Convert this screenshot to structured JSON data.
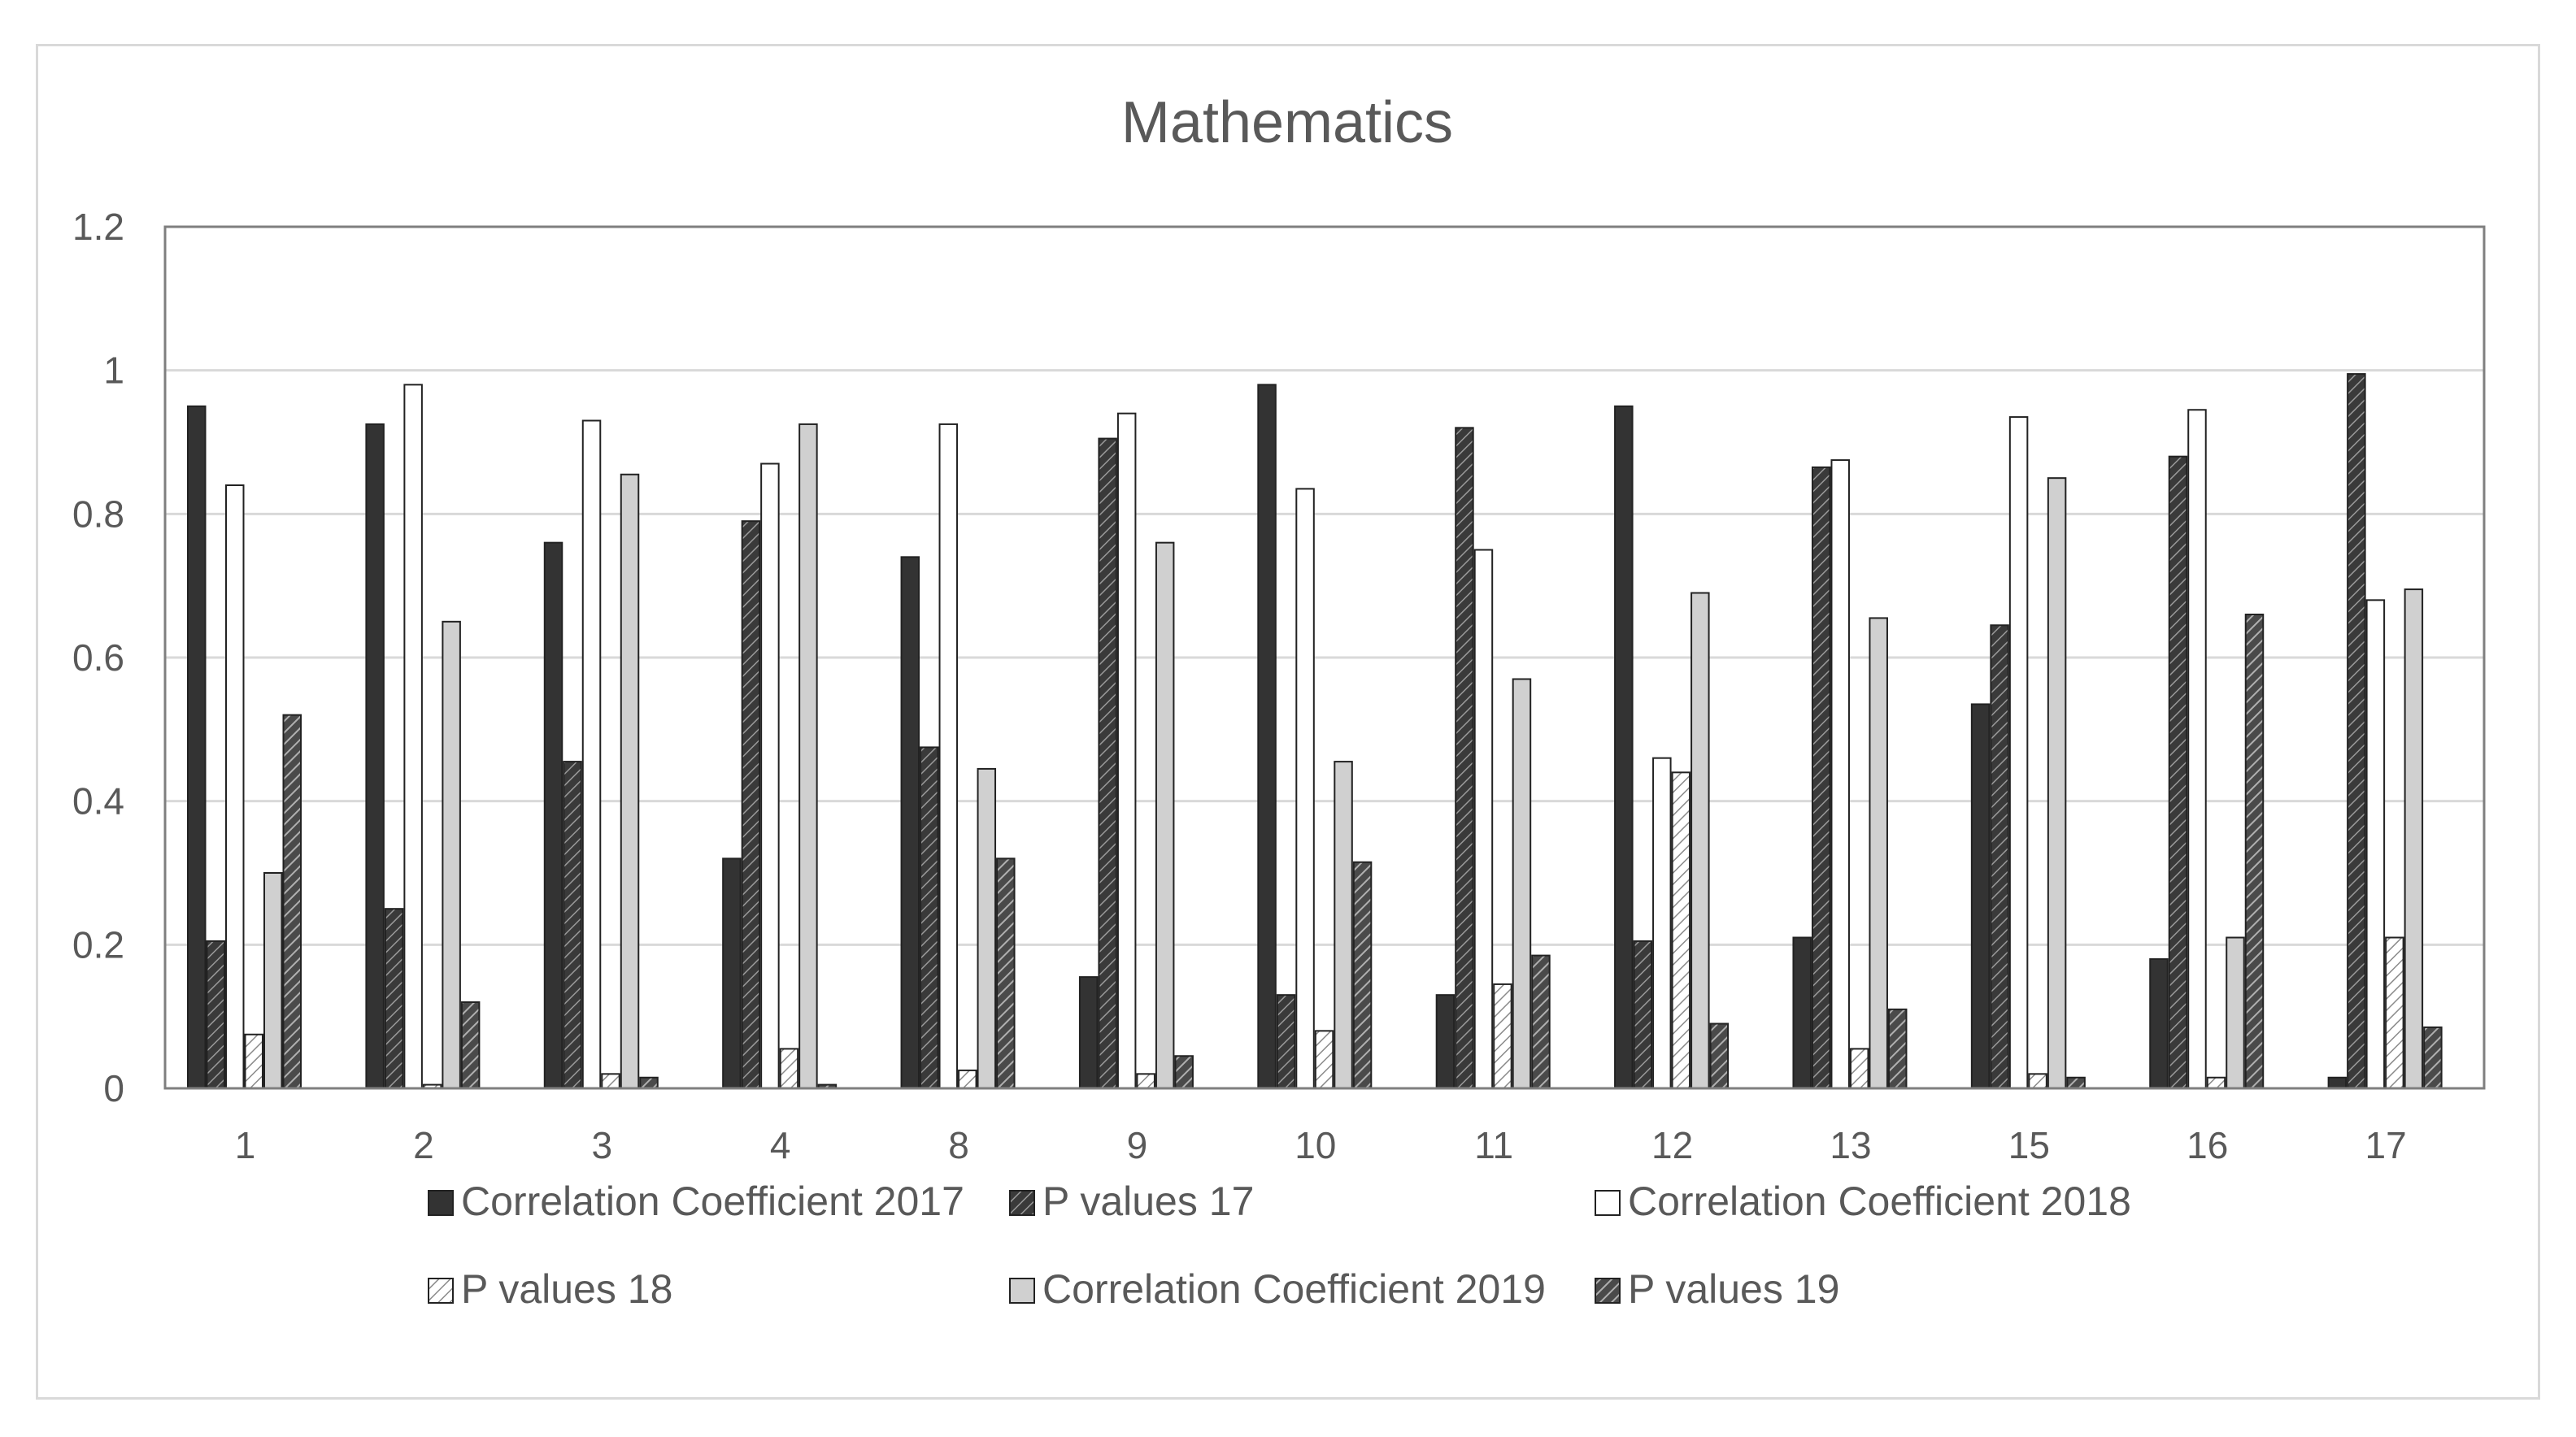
{
  "chart_data": {
    "type": "bar",
    "title": "Mathematics",
    "xlabel": "",
    "ylabel": "",
    "ylim": [
      0,
      1.2
    ],
    "yticks": [
      "0",
      "0.2",
      "0.4",
      "0.6",
      "0.8",
      "1",
      "1.2"
    ],
    "grid": true,
    "legend_position": "bottom",
    "categories": [
      "1",
      "2",
      "3",
      "4",
      "8",
      "9",
      "10",
      "11",
      "12",
      "13",
      "15",
      "16",
      "17"
    ],
    "series": [
      {
        "name": "Correlation Coefficient 2017",
        "fill": "solid-dark",
        "values": [
          0.95,
          0.925,
          0.76,
          0.32,
          0.74,
          0.155,
          0.98,
          0.13,
          0.95,
          0.21,
          0.535,
          0.18,
          0.015
        ]
      },
      {
        "name": "P values 17",
        "fill": "hatch-dark",
        "values": [
          0.205,
          0.25,
          0.455,
          0.79,
          0.475,
          0.905,
          0.13,
          0.92,
          0.205,
          0.865,
          0.645,
          0.88,
          0.995
        ]
      },
      {
        "name": "Correlation Coefficient 2018",
        "fill": "white",
        "values": [
          0.84,
          0.98,
          0.93,
          0.87,
          0.925,
          0.94,
          0.835,
          0.75,
          0.46,
          0.875,
          0.935,
          0.945,
          0.68
        ]
      },
      {
        "name": "P values 18",
        "fill": "hatch-light",
        "values": [
          0.075,
          0.005,
          0.02,
          0.055,
          0.025,
          0.02,
          0.08,
          0.145,
          0.44,
          0.055,
          0.02,
          0.015,
          0.21
        ]
      },
      {
        "name": "Correlation Coefficient 2019",
        "fill": "solid-light",
        "values": [
          0.3,
          0.65,
          0.855,
          0.925,
          0.445,
          0.76,
          0.455,
          0.57,
          0.69,
          0.655,
          0.85,
          0.21,
          0.695
        ]
      },
      {
        "name": "P values 19",
        "fill": "hatch-mid",
        "values": [
          0.52,
          0.12,
          0.015,
          0.005,
          0.32,
          0.045,
          0.315,
          0.185,
          0.09,
          0.11,
          0.015,
          0.66,
          0.085
        ]
      }
    ]
  },
  "colors": {
    "dark": "#333333",
    "mid_hatch": "#555555",
    "light_fill": "#d0d0d0",
    "grid": "#d9d9d9",
    "axis_text": "#595959"
  }
}
